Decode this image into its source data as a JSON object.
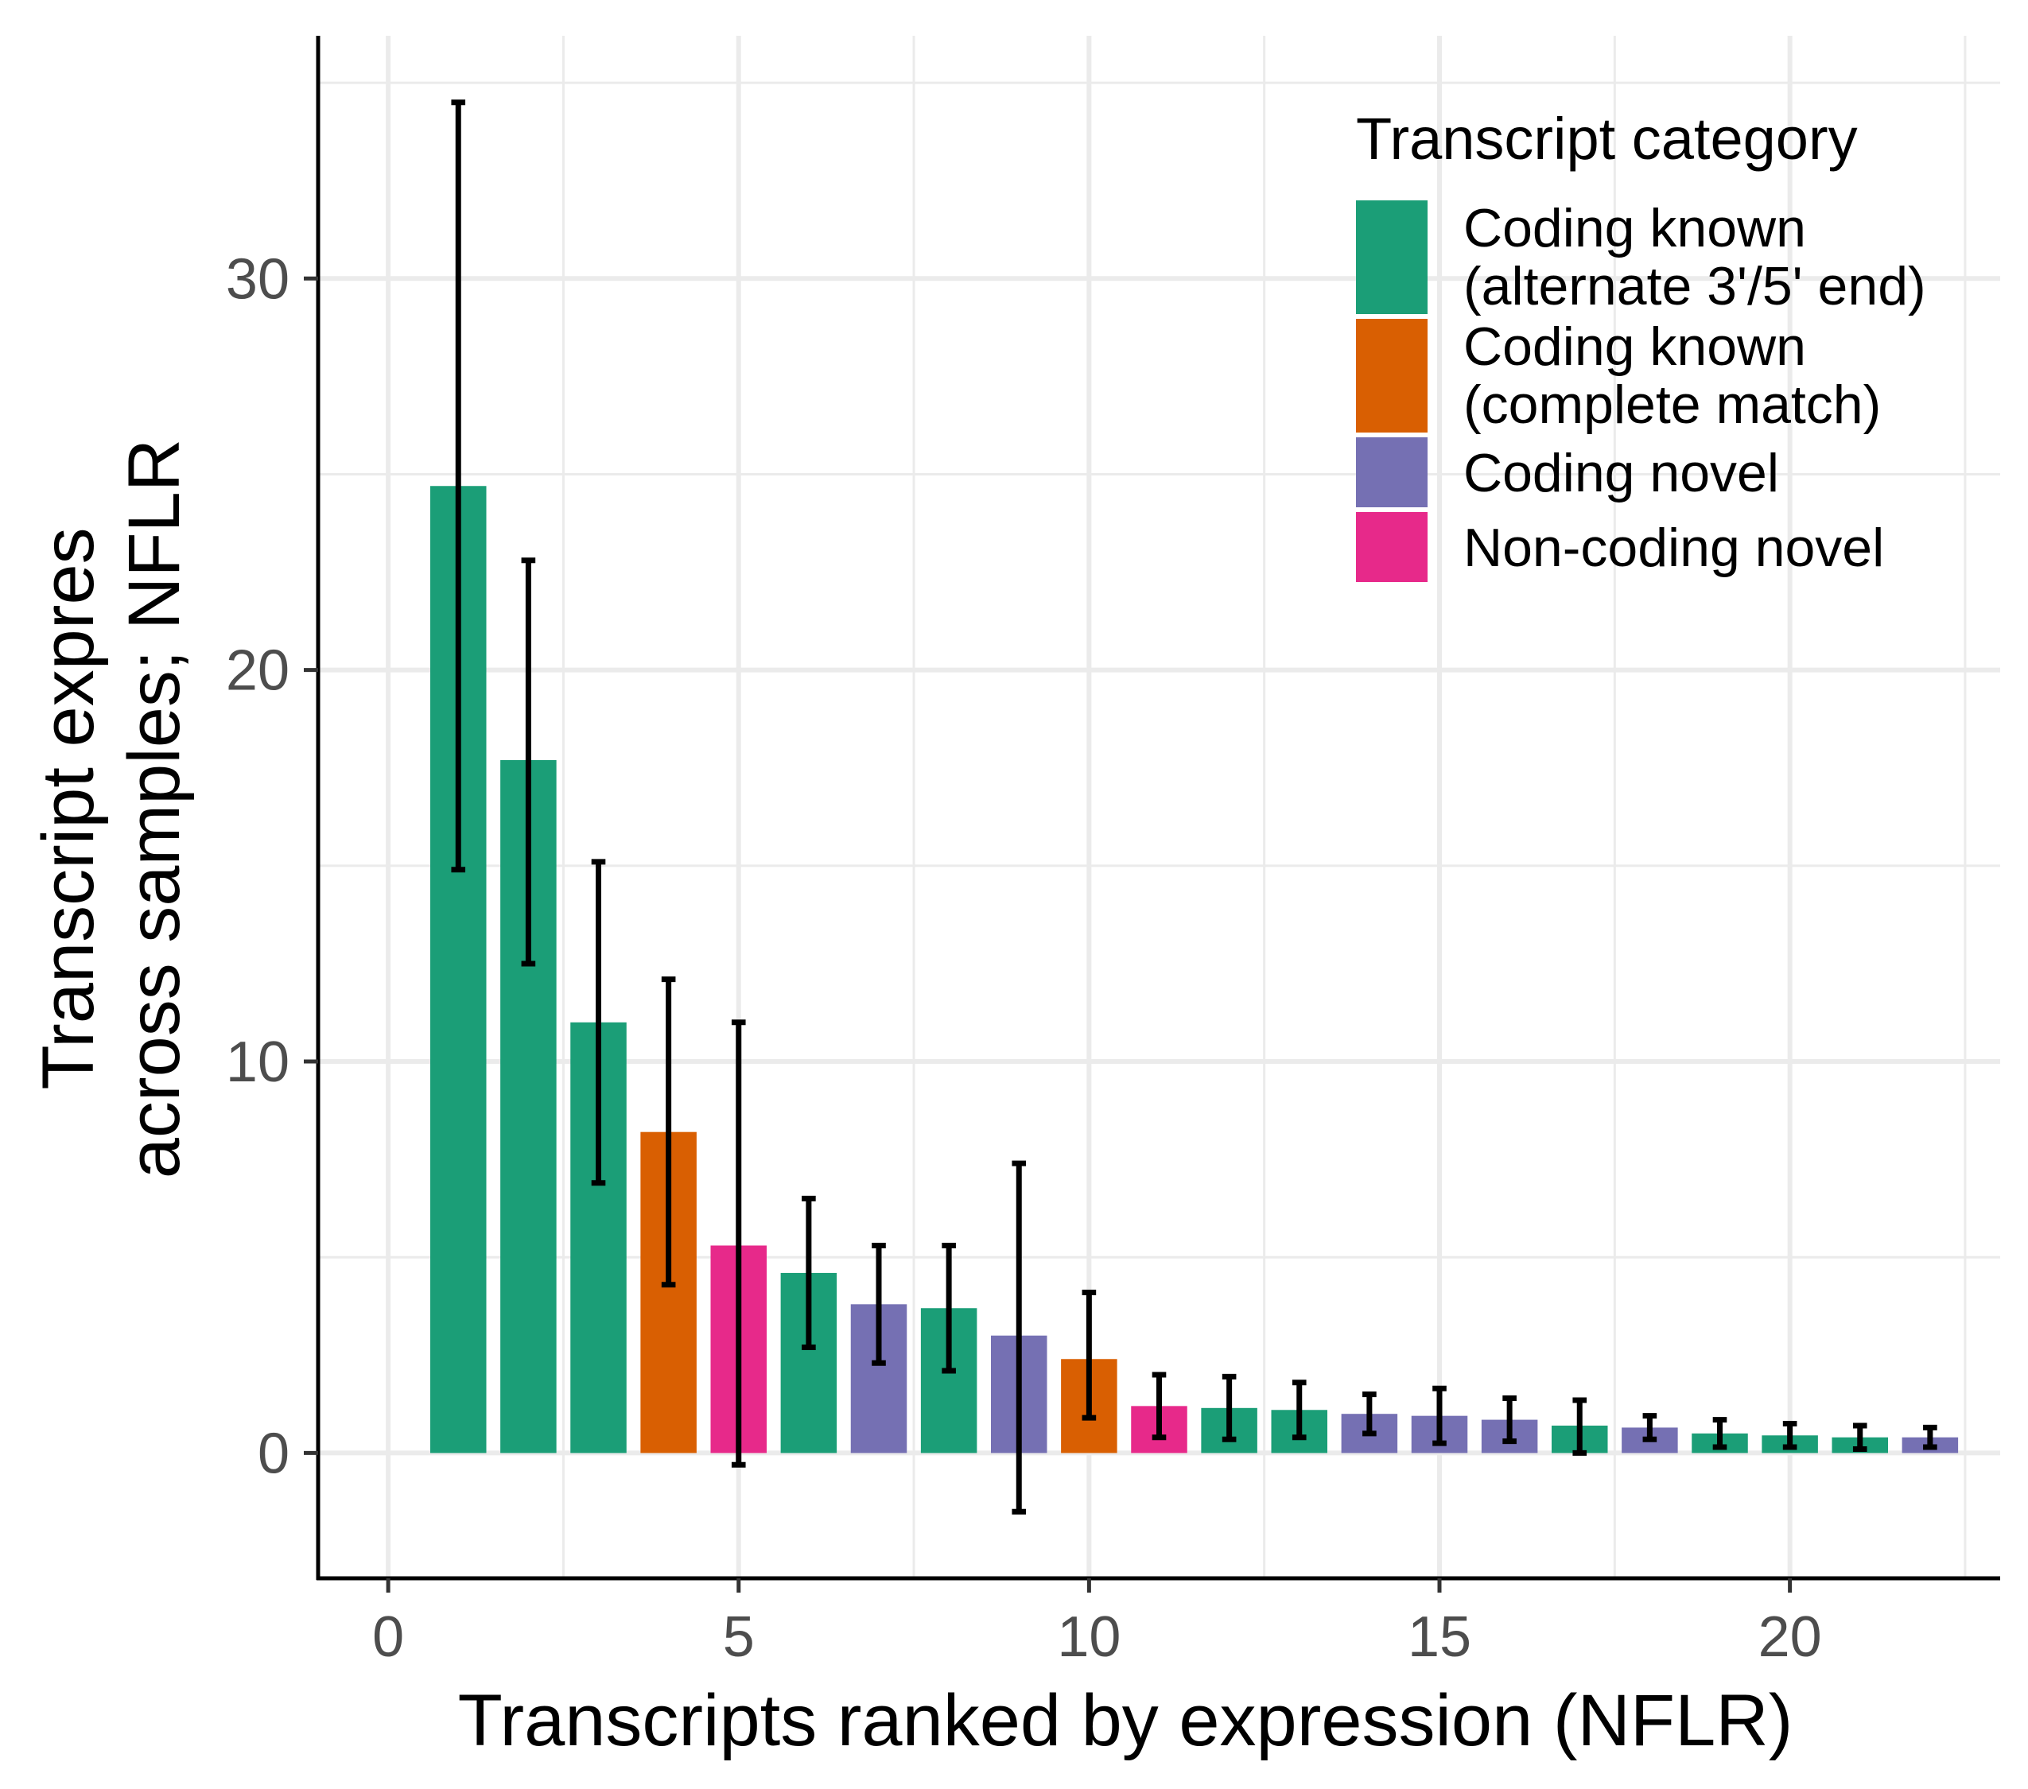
{
  "chart_data": {
    "type": "bar",
    "title": "",
    "xlabel": "Transcripts ranked by expression (NFLR)",
    "ylabel_lines": [
      "Transcript expres",
      "across samples; NFLR"
    ],
    "xlim": [
      -1,
      23
    ],
    "ylim": [
      -3.2,
      36.2
    ],
    "x_ticks": [
      "0",
      "5",
      "10",
      "15",
      "20"
    ],
    "y_ticks": [
      "0",
      "10",
      "20",
      "30"
    ],
    "grid": true,
    "legend_position": "top-right",
    "legend": {
      "title": "Transcript category",
      "entries": [
        {
          "key": "alt",
          "label_lines": [
            "Coding known",
            "(alternate 3'/5' end)"
          ],
          "color": "#1b9e77"
        },
        {
          "key": "match",
          "label_lines": [
            "Coding known",
            "(complete match)"
          ],
          "color": "#d95f02"
        },
        {
          "key": "novel",
          "label_lines": [
            "Coding novel"
          ],
          "color": "#7570b3"
        },
        {
          "key": "noncoding",
          "label_lines": [
            "Non-coding novel"
          ],
          "color": "#e7298a"
        }
      ]
    },
    "bars": [
      {
        "rank": 1,
        "value": 24.7,
        "err_low": 14.9,
        "err_high": 34.5,
        "category": "alt"
      },
      {
        "rank": 2,
        "value": 17.7,
        "err_low": 12.5,
        "err_high": 22.8,
        "category": "alt"
      },
      {
        "rank": 3,
        "value": 11.0,
        "err_low": 6.9,
        "err_high": 15.1,
        "category": "alt"
      },
      {
        "rank": 4,
        "value": 8.2,
        "err_low": 4.3,
        "err_high": 12.1,
        "category": "match"
      },
      {
        "rank": 5,
        "value": 5.3,
        "err_low": -0.3,
        "err_high": 11.0,
        "category": "noncoding"
      },
      {
        "rank": 6,
        "value": 4.6,
        "err_low": 2.7,
        "err_high": 6.5,
        "category": "alt"
      },
      {
        "rank": 7,
        "value": 3.8,
        "err_low": 2.3,
        "err_high": 5.3,
        "category": "novel"
      },
      {
        "rank": 8,
        "value": 3.7,
        "err_low": 2.1,
        "err_high": 5.3,
        "category": "alt"
      },
      {
        "rank": 9,
        "value": 3.0,
        "err_low": -1.5,
        "err_high": 7.4,
        "category": "novel"
      },
      {
        "rank": 10,
        "value": 2.4,
        "err_low": 0.9,
        "err_high": 4.1,
        "category": "match"
      },
      {
        "rank": 11,
        "value": 1.2,
        "err_low": 0.4,
        "err_high": 2.0,
        "category": "noncoding"
      },
      {
        "rank": 12,
        "value": 1.15,
        "err_low": 0.35,
        "err_high": 1.95,
        "category": "alt"
      },
      {
        "rank": 13,
        "value": 1.1,
        "err_low": 0.4,
        "err_high": 1.8,
        "category": "alt"
      },
      {
        "rank": 14,
        "value": 1.0,
        "err_low": 0.5,
        "err_high": 1.5,
        "category": "novel"
      },
      {
        "rank": 15,
        "value": 0.95,
        "err_low": 0.25,
        "err_high": 1.65,
        "category": "novel"
      },
      {
        "rank": 16,
        "value": 0.85,
        "err_low": 0.3,
        "err_high": 1.4,
        "category": "novel"
      },
      {
        "rank": 17,
        "value": 0.7,
        "err_low": 0.0,
        "err_high": 1.35,
        "category": "alt"
      },
      {
        "rank": 18,
        "value": 0.65,
        "err_low": 0.35,
        "err_high": 0.95,
        "category": "novel"
      },
      {
        "rank": 19,
        "value": 0.5,
        "err_low": 0.15,
        "err_high": 0.85,
        "category": "alt"
      },
      {
        "rank": 20,
        "value": 0.45,
        "err_low": 0.15,
        "err_high": 0.75,
        "category": "alt"
      },
      {
        "rank": 21,
        "value": 0.4,
        "err_low": 0.1,
        "err_high": 0.7,
        "category": "alt"
      },
      {
        "rank": 22,
        "value": 0.4,
        "err_low": 0.15,
        "err_high": 0.65,
        "category": "novel"
      }
    ]
  }
}
